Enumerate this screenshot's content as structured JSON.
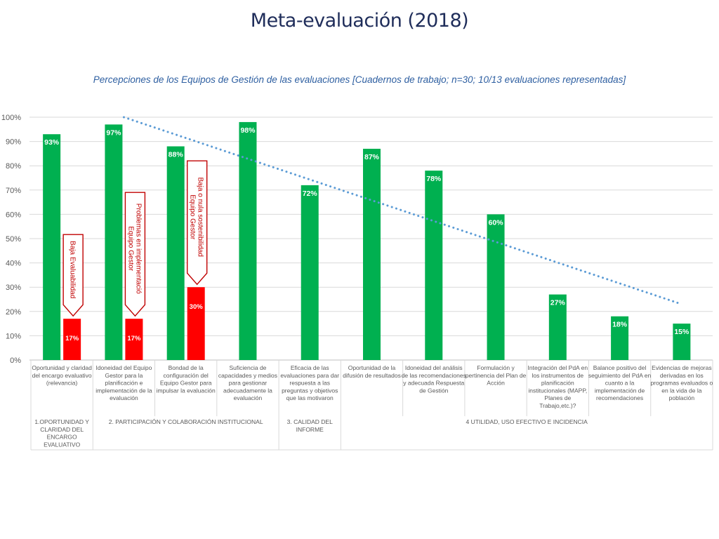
{
  "title": "Meta-evaluación (2018)",
  "subtitle": "Percepciones de los Equipos de Gestión de las evaluaciones [Cuadernos de trabajo; n=30; 10/13 evaluaciones representadas]",
  "colors": {
    "green": "#00b050",
    "red": "#ff0000",
    "trend": "#5b9bd5",
    "callout": "#c00000",
    "title": "#1f2d5a",
    "subtitle": "#2e5fa1"
  },
  "chart_data": {
    "type": "bar",
    "title": "Percepciones de los Equipos de Gestión de las evaluaciones [Cuadernos de trabajo; n=30; 10/13 evaluaciones representadas]",
    "ylim": [
      0,
      100
    ],
    "yticks": [
      "0%",
      "10%",
      "20%",
      "30%",
      "40%",
      "50%",
      "60%",
      "70%",
      "80%",
      "90%",
      "100%"
    ],
    "grid": true,
    "categories": [
      [
        "Oportunidad y claridad",
        "del encargo evaluativo",
        "(relevancia)"
      ],
      [
        "Idoneidad del Equipo",
        "Gestor para la",
        "planificación e",
        "implementación de la",
        "evaluación"
      ],
      [
        "Bondad de la",
        "configuración del",
        "Equipo Gestor para",
        "impulsar la evaluación"
      ],
      [
        "Suficiencia de",
        "capacidades y medios",
        "para gestionar",
        "adecuadamente la",
        "evaluación"
      ],
      [
        "Eficacia de las",
        "evaluaciones para dar",
        "respuesta a las",
        "preguntas y objetivos",
        "que las motivaron"
      ],
      [
        "Oportunidad de la",
        "difusión de resultados"
      ],
      [
        "Idoneidad del análisis",
        "de las recomendaciones",
        "y adecuada Respuesta",
        "de Gestión"
      ],
      [
        "Formulación y",
        "pertinencia del Plan de",
        "Acción"
      ],
      [
        "Integración del PdA en",
        "los instrumentos de",
        "planificación",
        "institucionales (MAPP,",
        "Planes de",
        "Trabajo,etc.)?"
      ],
      [
        "Balance positivo del",
        "seguimiento del PdA en",
        "cuanto a la",
        "implementación de",
        "recomendaciones"
      ],
      [
        "Evidencias de mejoras",
        "derivadas en los",
        "programas evaluados o",
        "en la vida de la",
        "población"
      ]
    ],
    "series": [
      {
        "values": [
          93,
          97,
          88,
          98,
          72,
          87,
          78,
          60,
          27,
          18,
          15
        ],
        "labels": [
          "93%",
          "97%",
          "88%",
          "98%",
          "72%",
          "87%",
          "78%",
          "60%",
          "27%",
          "18%",
          "15%"
        ]
      },
      {
        "values": [
          17,
          17,
          30,
          null,
          null,
          null,
          null,
          null,
          null,
          null,
          null
        ],
        "labels": [
          "17%",
          "17%",
          "30%",
          "",
          "",
          "",
          "",
          "",
          "",
          "",
          ""
        ]
      }
    ],
    "trendline": {
      "style": "dotted",
      "from_category": 1,
      "to_category": 10,
      "y_start": 100,
      "y_end": 23
    },
    "groups": [
      {
        "lines": [
          "1.OPORTUNIDAD Y",
          "CLARIDAD DEL",
          "ENCARGO",
          "EVALUATIVO"
        ],
        "first": 0,
        "last": 0
      },
      {
        "lines": [
          "2. PARTICIPACIÓN Y COLABORACIÓN INSTITUCIONAL"
        ],
        "first": 1,
        "last": 3
      },
      {
        "lines": [
          "3. CALIDAD DEL",
          "INFORME"
        ],
        "first": 4,
        "last": 4
      },
      {
        "lines": [
          "4 UTILIDAD, USO EFECTIVO E INCIDENCIA"
        ],
        "first": 5,
        "last": 10
      }
    ],
    "callouts": [
      {
        "category": 0,
        "lines": [
          "Baja Evaluabilidad"
        ]
      },
      {
        "category": 1,
        "lines": [
          "Problemas en implementació",
          "Equipo Gestor"
        ]
      },
      {
        "category": 2,
        "lines": [
          "Baja o nula sostenibilidad",
          "Equipo Gestor"
        ]
      }
    ]
  }
}
